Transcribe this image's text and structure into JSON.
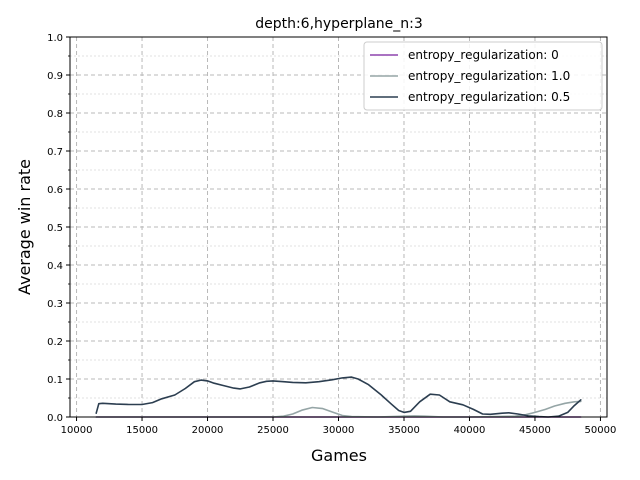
{
  "chart_data": {
    "type": "line",
    "title": "depth:6,hyperplane_n:3",
    "xlabel": "Games",
    "ylabel": "Average win rate",
    "xlim": [
      9500,
      50500
    ],
    "ylim": [
      0,
      1
    ],
    "x_ticks": [
      10000,
      15000,
      20000,
      25000,
      30000,
      35000,
      40000,
      45000,
      50000
    ],
    "y_ticks": [
      0.0,
      0.1,
      0.2,
      0.3,
      0.4,
      0.5,
      0.6,
      0.7,
      0.8,
      0.9,
      1.0
    ],
    "y_tick_labels": [
      "0.0",
      "0.1",
      "0.2",
      "0.3",
      "0.4",
      "0.5",
      "0.6",
      "0.7",
      "0.8",
      "0.9",
      "1.0"
    ],
    "y_minor_ticks": [
      0.05,
      0.15,
      0.25,
      0.35,
      0.45,
      0.55,
      0.65,
      0.75,
      0.85,
      0.95
    ],
    "grid": true,
    "legend_position": "top-right",
    "series": [
      {
        "name": "entropy_regularization: 0",
        "color": "#8e44ad",
        "x": [
          11500,
          15000,
          20000,
          25000,
          30000,
          35000,
          40000,
          45000,
          48500
        ],
        "values": [
          0,
          0,
          0,
          0,
          0,
          0,
          0,
          0,
          0
        ]
      },
      {
        "name": "entropy_regularization: 1.0",
        "color": "#95a5a6",
        "x": [
          11500,
          15000,
          20000,
          25000,
          25800,
          26500,
          27200,
          28000,
          28800,
          29600,
          30300,
          31000,
          33000,
          35000,
          35800,
          36600,
          38000,
          40000,
          43500,
          44300,
          45000,
          45800,
          46500,
          47300,
          48000,
          48500
        ],
        "values": [
          0,
          0,
          0,
          0,
          0.002,
          0.008,
          0.018,
          0.025,
          0.022,
          0.012,
          0.004,
          0.001,
          0,
          0.002,
          0.003,
          0.002,
          0,
          0,
          0.002,
          0.006,
          0.012,
          0.02,
          0.029,
          0.036,
          0.04,
          0.041
        ]
      },
      {
        "name": "entropy_regularization: 0.5",
        "color": "#2c3e50",
        "x": [
          11500,
          11700,
          12000,
          13000,
          14000,
          15000,
          15800,
          16500,
          17500,
          18300,
          19000,
          19500,
          20000,
          20500,
          21200,
          22000,
          22500,
          23200,
          24000,
          24500,
          25000,
          25800,
          26500,
          27500,
          28500,
          29500,
          30300,
          31000,
          31500,
          32300,
          33200,
          34000,
          34600,
          35000,
          35500,
          36200,
          37000,
          37700,
          38500,
          39500,
          40300,
          41000,
          41600,
          42500,
          43000,
          43700,
          44500,
          45300,
          46000,
          46800,
          47500,
          48000,
          48500
        ],
        "values": [
          0.01,
          0.035,
          0.036,
          0.034,
          0.033,
          0.033,
          0.038,
          0.048,
          0.058,
          0.075,
          0.093,
          0.097,
          0.095,
          0.089,
          0.083,
          0.076,
          0.074,
          0.079,
          0.09,
          0.094,
          0.095,
          0.093,
          0.091,
          0.09,
          0.093,
          0.098,
          0.103,
          0.105,
          0.1,
          0.085,
          0.06,
          0.035,
          0.017,
          0.012,
          0.015,
          0.04,
          0.06,
          0.058,
          0.04,
          0.032,
          0.02,
          0.008,
          0.007,
          0.01,
          0.011,
          0.008,
          0.003,
          0.001,
          0.0,
          0.002,
          0.012,
          0.03,
          0.045
        ]
      }
    ]
  }
}
